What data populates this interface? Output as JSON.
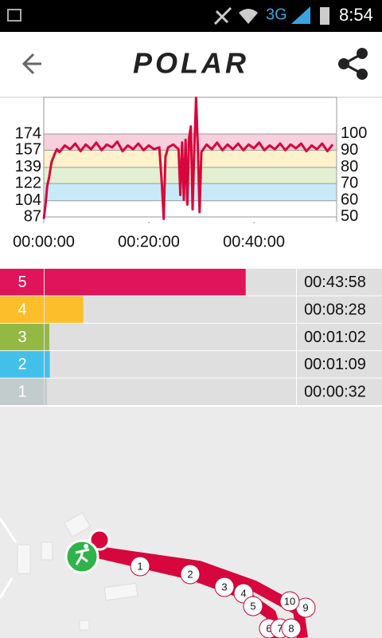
{
  "status_bar": {
    "network": "3G",
    "time": "8:54"
  },
  "header": {
    "logo": "POLAR"
  },
  "chart_data": {
    "type": "line",
    "xlim": [
      0,
      3345
    ],
    "xticks": [
      {
        "value": 0,
        "label": "00:00:00"
      },
      {
        "value": 1200,
        "label": "00:20:00"
      },
      {
        "value": 2400,
        "label": "00:40:00"
      }
    ],
    "ylim": [
      82,
      212.5
    ],
    "yticks": [
      87,
      104,
      122,
      139,
      157,
      174
    ],
    "y2lim": [
      47.1,
      122.1
    ],
    "y2ticks": [
      50,
      60,
      70,
      80,
      90,
      100
    ],
    "grid": true,
    "bands": [
      {
        "from": 104,
        "to": 122,
        "color": "#c8eaf8"
      },
      {
        "from": 122,
        "to": 139,
        "color": "#e3efd2"
      },
      {
        "from": 139,
        "to": 157,
        "color": "#fdf2cc"
      },
      {
        "from": 157,
        "to": 174,
        "color": "#f8cfdc"
      }
    ],
    "series": [
      {
        "color": "#d7063c",
        "x": [
          0,
          20,
          40,
          60,
          90,
          120,
          150,
          180,
          240,
          300,
          360,
          420,
          480,
          540,
          600,
          660,
          720,
          780,
          840,
          900,
          960,
          1020,
          1080,
          1140,
          1200,
          1260,
          1320,
          1350,
          1370,
          1390,
          1420,
          1480,
          1540,
          1560,
          1580,
          1600,
          1620,
          1640,
          1660,
          1680,
          1700,
          1720,
          1740,
          1760,
          1780,
          1800,
          1860,
          1920,
          1980,
          2040,
          2100,
          2160,
          2220,
          2280,
          2340,
          2400,
          2460,
          2520,
          2580,
          2640,
          2700,
          2760,
          2820,
          2880,
          2940,
          3000,
          3060,
          3120,
          3180,
          3240,
          3300
        ],
        "values": [
          85,
          100,
          120,
          128,
          145,
          152,
          158,
          155,
          162,
          158,
          164,
          156,
          163,
          158,
          165,
          157,
          163,
          160,
          166,
          156,
          162,
          158,
          164,
          157,
          162,
          158,
          160,
          120,
          85,
          150,
          160,
          163,
          158,
          110,
          165,
          105,
          168,
          100,
          170,
          182,
          95,
          160,
          212,
          160,
          92,
          155,
          163,
          158,
          165,
          157,
          163,
          158,
          164,
          157,
          163,
          159,
          165,
          157,
          162,
          158,
          164,
          157,
          163,
          159,
          164,
          156,
          162,
          158,
          164,
          156,
          163
        ]
      }
    ]
  },
  "zones": [
    {
      "zone": "5",
      "duration": "00:43:58",
      "color": "#e0145a"
    },
    {
      "zone": "4",
      "duration": "00:08:28",
      "color": "#fdbe2c"
    },
    {
      "zone": "3",
      "duration": "00:01:02",
      "color": "#93b844"
    },
    {
      "zone": "2",
      "duration": "00:01:09",
      "color": "#42c0ea"
    },
    {
      "zone": "1",
      "duration": "00:00:32",
      "color": "#c3cccc"
    }
  ],
  "map": {
    "markers": [
      "1",
      "2",
      "3",
      "4",
      "5",
      "6",
      "7",
      "8",
      "9",
      "10"
    ]
  }
}
